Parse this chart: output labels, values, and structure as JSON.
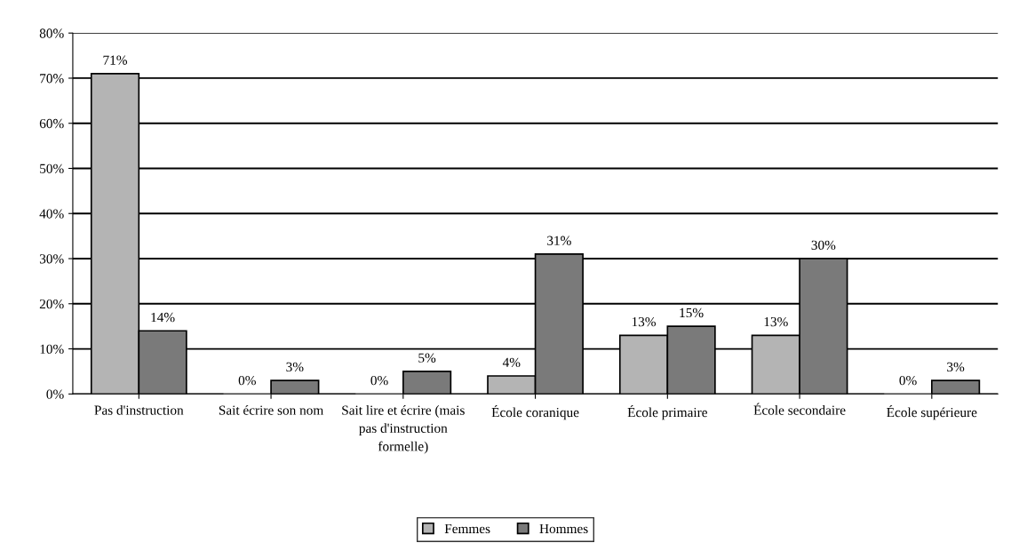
{
  "chart_data": {
    "type": "bar",
    "categories": [
      "Pas d'instruction",
      "Sait écrire son nom",
      "Sait lire et écrire (mais pas d'instruction formelle)",
      "École coranique",
      "École primaire",
      "École secondaire",
      "École supérieure"
    ],
    "series": [
      {
        "name": "Femmes",
        "color": "#b4b4b4",
        "values": [
          71,
          0,
          0,
          4,
          13,
          13,
          0
        ],
        "value_labels": [
          "71%",
          "0%",
          "0%",
          "4%",
          "13%",
          "13%",
          "0%"
        ]
      },
      {
        "name": "Hommes",
        "color": "#7a7a7a",
        "values": [
          14,
          3,
          5,
          31,
          15,
          30,
          3
        ],
        "value_labels": [
          "14%",
          "3%",
          "5%",
          "31%",
          "15%",
          "30%",
          "3%"
        ]
      }
    ],
    "ylim": [
      0,
      80
    ],
    "yticks": [
      {
        "value": 0,
        "label": "0%"
      },
      {
        "value": 10,
        "label": "10%"
      },
      {
        "value": 20,
        "label": "20%"
      },
      {
        "value": 30,
        "label": "30%"
      },
      {
        "value": 40,
        "label": "40%"
      },
      {
        "value": 50,
        "label": "50%"
      },
      {
        "value": 60,
        "label": "60%"
      },
      {
        "value": 70,
        "label": "70%"
      },
      {
        "value": 80,
        "label": "80%"
      }
    ],
    "grid": "y",
    "legend": "bottom"
  }
}
